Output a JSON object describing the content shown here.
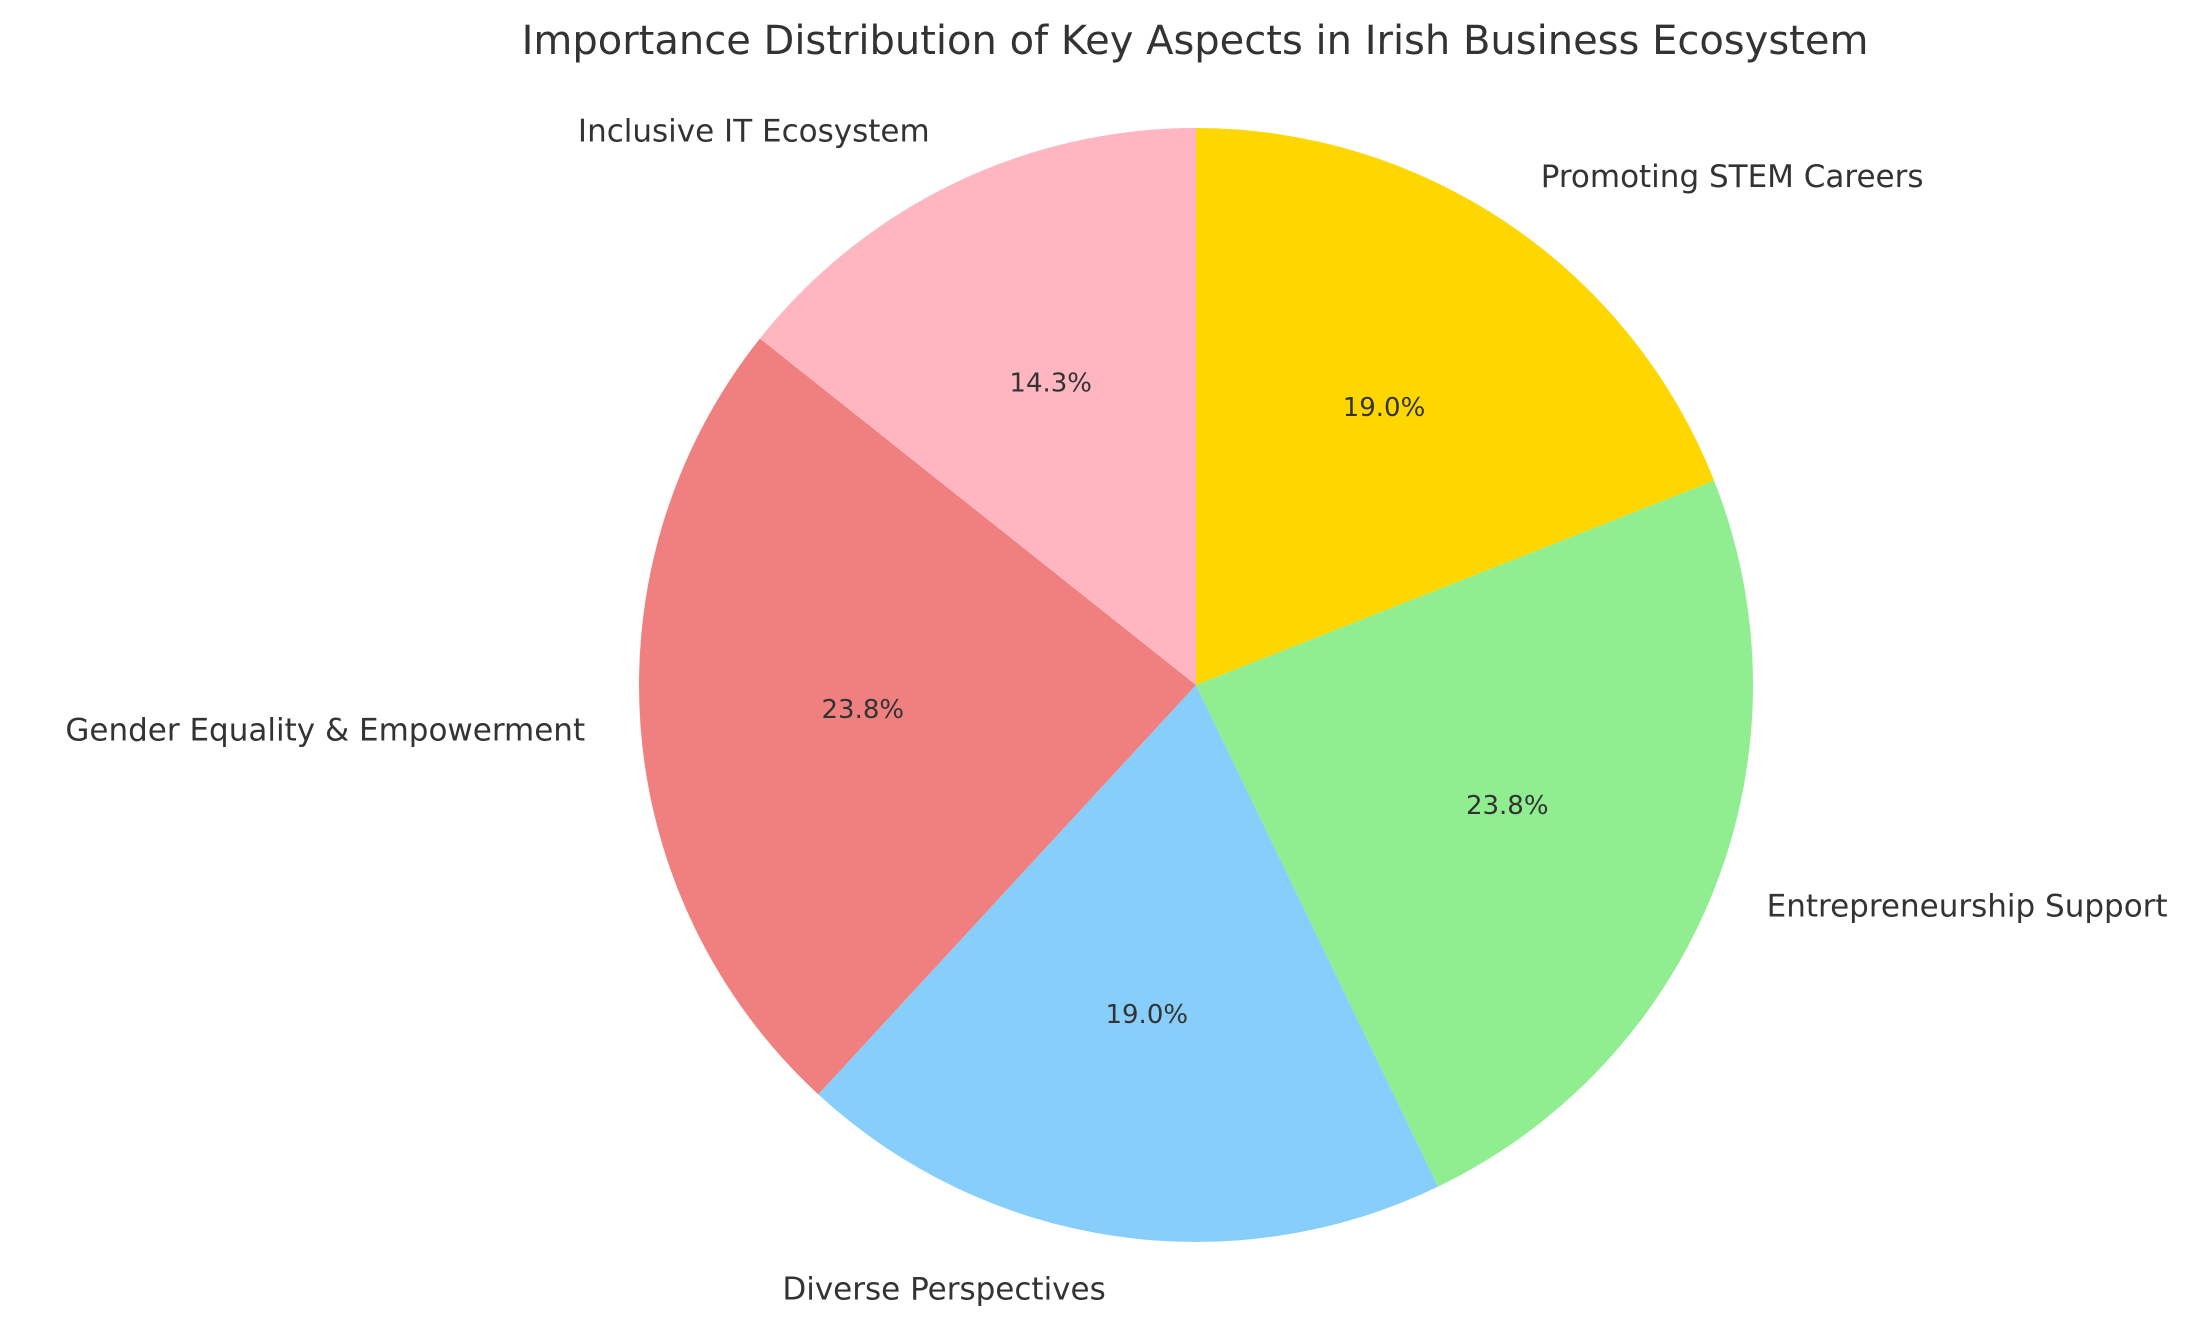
{
  "chart_data": {
    "type": "pie",
    "title": "Importance Distribution of Key Aspects in Irish Business Ecosystem",
    "categories": [
      "Promoting STEM Careers",
      "Entrepreneurship Support",
      "Diverse Perspectives",
      "Gender Equality & Empowerment",
      "Inclusive IT Ecosystem"
    ],
    "values": [
      19.0,
      23.8,
      19.0,
      23.8,
      14.3
    ],
    "percent_labels": [
      "19.0%",
      "23.8%",
      "19.0%",
      "23.8%",
      "14.3%"
    ],
    "colors": [
      "#FFD700",
      "#90EE90",
      "#87CEFA",
      "#F08080",
      "#FFB6C1"
    ],
    "direction": "clockwise",
    "start_angle_deg": 90,
    "legend": "none",
    "grid": false
  }
}
